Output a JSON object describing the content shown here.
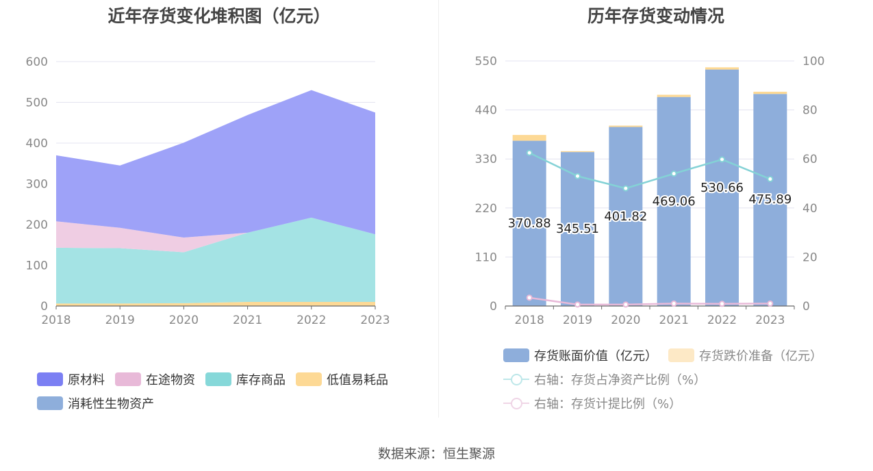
{
  "source": "数据来源：恒生聚源",
  "chart_data": [
    {
      "type": "area",
      "stacked": true,
      "title": "近年存货变化堆积图（亿元）",
      "x": [
        "2018",
        "2019",
        "2020",
        "2021",
        "2022",
        "2023"
      ],
      "ylim": [
        0,
        600
      ],
      "yticks": [
        "0",
        "100",
        "200",
        "300",
        "400",
        "500",
        "600"
      ],
      "grid": true,
      "legend_position": "bottom",
      "series": [
        {
          "name": "低值易耗品",
          "color": "#fdd995",
          "values": [
            6,
            6,
            7,
            10,
            10,
            10
          ]
        },
        {
          "name": "库存商品",
          "color": "#a4e3e4",
          "values": [
            137,
            136,
            125,
            170,
            207,
            166
          ]
        },
        {
          "name": "在途物资",
          "color": "#efcde3",
          "values": [
            65,
            50,
            36,
            0,
            0,
            0
          ]
        },
        {
          "name": "原材料",
          "color": "#9ea2f8",
          "values": [
            162,
            153,
            233,
            289,
            313,
            299
          ]
        },
        {
          "name": "消耗性生物资产",
          "color": "#8eaedb",
          "values": [
            0,
            0,
            0,
            0,
            0,
            0
          ]
        }
      ],
      "legend": [
        {
          "name": "原材料",
          "color": "#7b7ff3"
        },
        {
          "name": "在途物资",
          "color": "#e8b9d8"
        },
        {
          "name": "库存商品",
          "color": "#86d8d9"
        },
        {
          "name": "低值易耗品",
          "color": "#fdd995"
        },
        {
          "name": "消耗性生物资产",
          "color": "#8eaedb"
        }
      ]
    },
    {
      "type": "bar",
      "stacked": true,
      "title": "历年存货变动情况",
      "categories": [
        "2018",
        "2019",
        "2020",
        "2021",
        "2022",
        "2023"
      ],
      "ylim": [
        0,
        550
      ],
      "yticks": [
        "0",
        "110",
        "220",
        "330",
        "440",
        "550"
      ],
      "y2lim": [
        0,
        100
      ],
      "y2ticks": [
        "0",
        "20",
        "40",
        "60",
        "80",
        "100"
      ],
      "grid": true,
      "legend_position": "bottom",
      "series": [
        {
          "name": "存货账面价值（亿元）",
          "color": "#8eaedb",
          "values": [
            370.88,
            345.51,
            401.82,
            469.06,
            530.66,
            475.89
          ],
          "labels": [
            "370.88",
            "345.51",
            "401.82",
            "469.06",
            "530.66",
            "475.89"
          ]
        },
        {
          "name": "存货跌价准备（亿元）",
          "color": "#fdd995",
          "values": [
            13,
            2,
            3,
            5,
            5,
            5
          ]
        }
      ],
      "lines": [
        {
          "name": "右轴：存货占净资产比例（%）",
          "axis": "right",
          "color": "#84d2d6",
          "values": [
            62.5,
            53.0,
            48.0,
            54.0,
            59.8,
            51.8
          ]
        },
        {
          "name": "右轴：存货计提比例（%）",
          "axis": "right",
          "color": "#e8b9d8",
          "values": [
            3.4,
            0.6,
            0.6,
            1.0,
            0.9,
            1.0
          ]
        }
      ]
    }
  ]
}
